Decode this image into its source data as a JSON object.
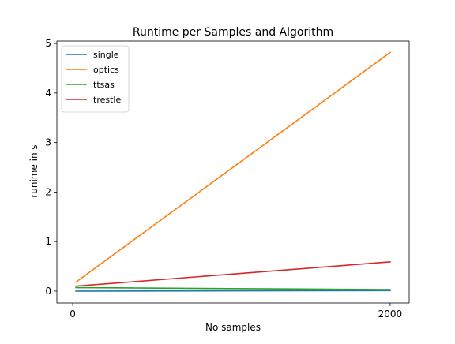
{
  "chart_data": {
    "type": "line",
    "title": "Runtime per Samples and Algorithm",
    "xlabel": "No samples",
    "ylabel": "runime in s",
    "x": [
      20,
      2000
    ],
    "xticks": [
      0,
      2000
    ],
    "yticks": [
      0,
      1,
      2,
      3,
      4,
      5
    ],
    "xlim": [
      -100,
      2120
    ],
    "ylim": [
      -0.24,
      5.05
    ],
    "grid": false,
    "legend_position": "upper-left",
    "series": [
      {
        "name": "single",
        "color": "#1f77b4",
        "values": [
          0.0,
          0.01
        ]
      },
      {
        "name": "optics",
        "color": "#ff7f0e",
        "values": [
          0.18,
          4.82
        ]
      },
      {
        "name": "ttsas",
        "color": "#2ca02c",
        "values": [
          0.07,
          0.03
        ]
      },
      {
        "name": "trestle",
        "color": "#d62728",
        "values": [
          0.1,
          0.59
        ]
      }
    ]
  }
}
